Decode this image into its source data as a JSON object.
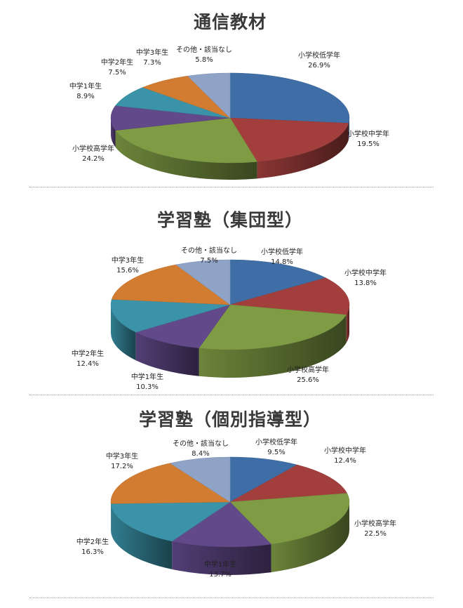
{
  "colors": [
    "#3f6ea6",
    "#a23f3d",
    "#7f9b44",
    "#61498a",
    "#3a93a8",
    "#d27c31",
    "#8ea3c6"
  ],
  "chart_data": [
    {
      "type": "pie",
      "title": "通信教材",
      "categories": [
        "小学校低学年",
        "小学校中学年",
        "小学校高学年",
        "中学1年生",
        "中学2年生",
        "中学3年生",
        "その他・該当なし"
      ],
      "values": [
        26.9,
        19.5,
        24.2,
        8.9,
        7.5,
        7.3,
        5.8
      ],
      "value_labels": [
        "26.9%",
        "19.5%",
        "24.2%",
        "8.9%",
        "7.5%",
        "7.3%",
        "5.8%"
      ]
    },
    {
      "type": "pie",
      "title": "学習塾（集団型）",
      "categories": [
        "小学校低学年",
        "小学校中学年",
        "小学校高学年",
        "中学1年生",
        "中学2年生",
        "中学3年生",
        "その他・該当なし"
      ],
      "values": [
        14.8,
        13.8,
        25.6,
        10.3,
        12.4,
        15.6,
        7.5
      ],
      "value_labels": [
        "14.8%",
        "13.8%",
        "25.6%",
        "10.3%",
        "12.4%",
        "15.6%",
        "7.5%"
      ]
    },
    {
      "type": "pie",
      "title": "学習塾（個別指導型）",
      "categories": [
        "小学校低学年",
        "小学校中学年",
        "小学校高学年",
        "中学1年生",
        "中学2年生",
        "中学3年生",
        "その他・該当なし"
      ],
      "values": [
        9.5,
        12.4,
        22.5,
        13.7,
        16.3,
        17.2,
        8.4
      ],
      "value_labels": [
        "9.5%",
        "12.4%",
        "22.5%",
        "13.7%",
        "16.3%",
        "17.2%",
        "8.4%"
      ]
    }
  ]
}
